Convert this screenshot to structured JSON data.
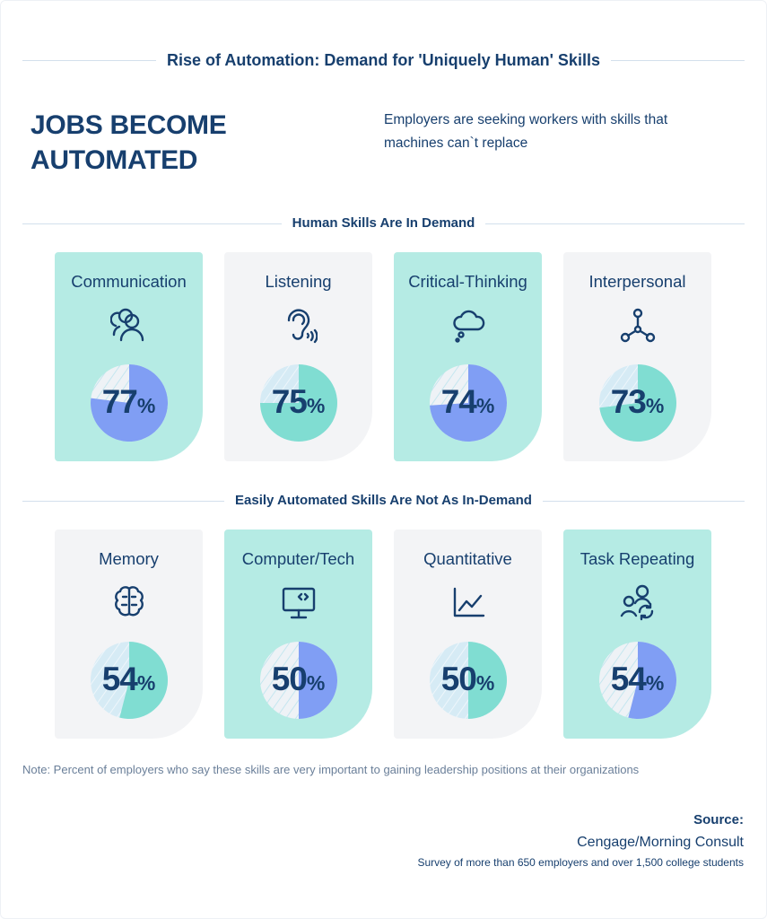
{
  "title": "Rise of Automation: Demand for 'Uniquely Human' Skills",
  "headline_lines": [
    "JOBS BECOME",
    "AUTOMATED"
  ],
  "subtitle": "Employers are seeking workers with skills that machines can`t replace",
  "colors": {
    "text": "#173f6e",
    "teal_card": "#b5ebe4",
    "grey_card": "#f3f4f6",
    "purple_slice": "#809ef4",
    "teal_slice": "#80ddd2",
    "remainder_on_teal": "#eef2f6",
    "remainder_on_grey": "#d6ebf5"
  },
  "chart_data": [
    {
      "type": "pie",
      "title": "Human Skills Are In Demand",
      "categories": [
        "Communication",
        "Listening",
        "Critical-Thinking",
        "Interpersonal"
      ],
      "values": [
        77,
        75,
        74,
        73
      ],
      "unit": "%",
      "icons": [
        "people-icon",
        "ear-icon",
        "cloud-thought-icon",
        "network-icon"
      ],
      "card_style": [
        "teal",
        "grey",
        "teal",
        "grey"
      ]
    },
    {
      "type": "pie",
      "title": "Easily Automated Skills Are Not As In-Demand",
      "categories": [
        "Memory",
        "Computer/Tech",
        "Quantitative",
        "Task Repeating"
      ],
      "values": [
        54,
        50,
        50,
        54
      ],
      "unit": "%",
      "icons": [
        "brain-icon",
        "monitor-code-icon",
        "line-chart-icon",
        "people-refresh-icon"
      ],
      "card_style": [
        "grey",
        "teal",
        "grey",
        "teal"
      ]
    }
  ],
  "note": "Note: Percent of employers who say these skills are very important to gaining leadership positions at their organizations",
  "source": {
    "heading": "Source:",
    "name": "Cengage/Morning Consult",
    "detail": "Survey of more than 650 employers and over 1,500 college students"
  }
}
